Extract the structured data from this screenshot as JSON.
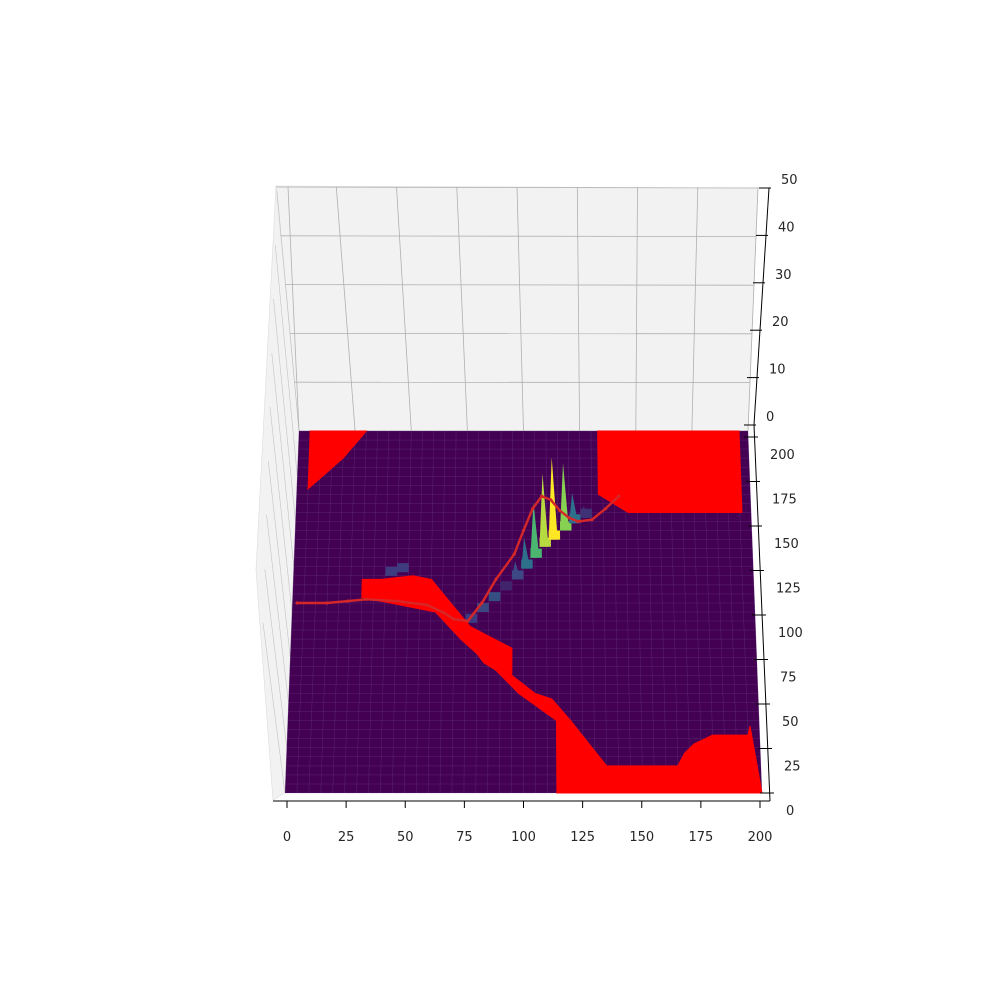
{
  "chart_data": {
    "type": "surface3d",
    "x_ticks": [
      0,
      25,
      50,
      75,
      100,
      125,
      150,
      175,
      200
    ],
    "y_ticks": [
      0,
      25,
      50,
      75,
      100,
      125,
      150,
      175,
      200
    ],
    "z_ticks": [
      0,
      10,
      20,
      30,
      40,
      50
    ],
    "xlim": [
      0,
      200
    ],
    "ylim": [
      0,
      200
    ],
    "zlim": [
      0,
      50
    ],
    "grid": true,
    "colors": {
      "surface_base": "#440154",
      "obstacle": "#ff0000",
      "path": "#d62728",
      "pane": "#f2f2f2",
      "grid": "#b0b0b0"
    },
    "obstacles": [
      {
        "name": "top-left-region",
        "polygon": [
          [
            5,
            200
          ],
          [
            30,
            200
          ],
          [
            20,
            185
          ],
          [
            5,
            168
          ]
        ]
      },
      {
        "name": "top-right-region",
        "polygon": [
          [
            133,
            200
          ],
          [
            196,
            200
          ],
          [
            196,
            155
          ],
          [
            146,
            155
          ],
          [
            133,
            165
          ]
        ]
      },
      {
        "name": "diagonal-band",
        "polygon": [
          [
            30,
            118
          ],
          [
            38,
            118
          ],
          [
            52,
            120
          ],
          [
            60,
            118
          ],
          [
            77,
            92
          ],
          [
            95,
            80
          ],
          [
            95,
            65
          ],
          [
            105,
            55
          ],
          [
            112,
            52
          ],
          [
            120,
            40
          ],
          [
            135,
            15
          ],
          [
            165,
            15
          ],
          [
            168,
            22
          ],
          [
            172,
            27
          ],
          [
            180,
            32
          ],
          [
            195,
            32
          ],
          [
            196,
            37
          ],
          [
            200,
            0
          ],
          [
            114,
            0
          ],
          [
            114,
            40
          ],
          [
            98,
            55
          ],
          [
            88,
            68
          ],
          [
            83,
            72
          ],
          [
            80,
            77
          ],
          [
            73,
            85
          ],
          [
            62,
            100
          ],
          [
            30,
            108
          ]
        ]
      }
    ],
    "path": [
      [
        2,
        105
      ],
      [
        15,
        105
      ],
      [
        24,
        106
      ],
      [
        32,
        107
      ],
      [
        45,
        106
      ],
      [
        58,
        104
      ],
      [
        65,
        100
      ],
      [
        70,
        96
      ],
      [
        76,
        95
      ],
      [
        82,
        105
      ],
      [
        88,
        118
      ],
      [
        96,
        132
      ],
      [
        100,
        145
      ],
      [
        104,
        157
      ],
      [
        108,
        164
      ],
      [
        112,
        162
      ],
      [
        116,
        156
      ],
      [
        120,
        152
      ],
      [
        124,
        150
      ],
      [
        130,
        151
      ],
      [
        136,
        157
      ],
      [
        142,
        164
      ]
    ],
    "peaks": [
      {
        "x": 90,
        "y": 112,
        "z": 3
      },
      {
        "x": 95,
        "y": 118,
        "z": 6
      },
      {
        "x": 99,
        "y": 124,
        "z": 10
      },
      {
        "x": 103,
        "y": 130,
        "z": 18
      },
      {
        "x": 107,
        "y": 136,
        "z": 24
      },
      {
        "x": 111,
        "y": 140,
        "z": 27
      },
      {
        "x": 116,
        "y": 145,
        "z": 22
      },
      {
        "x": 120,
        "y": 149,
        "z": 10
      },
      {
        "x": 125,
        "y": 152,
        "z": 4
      }
    ]
  }
}
